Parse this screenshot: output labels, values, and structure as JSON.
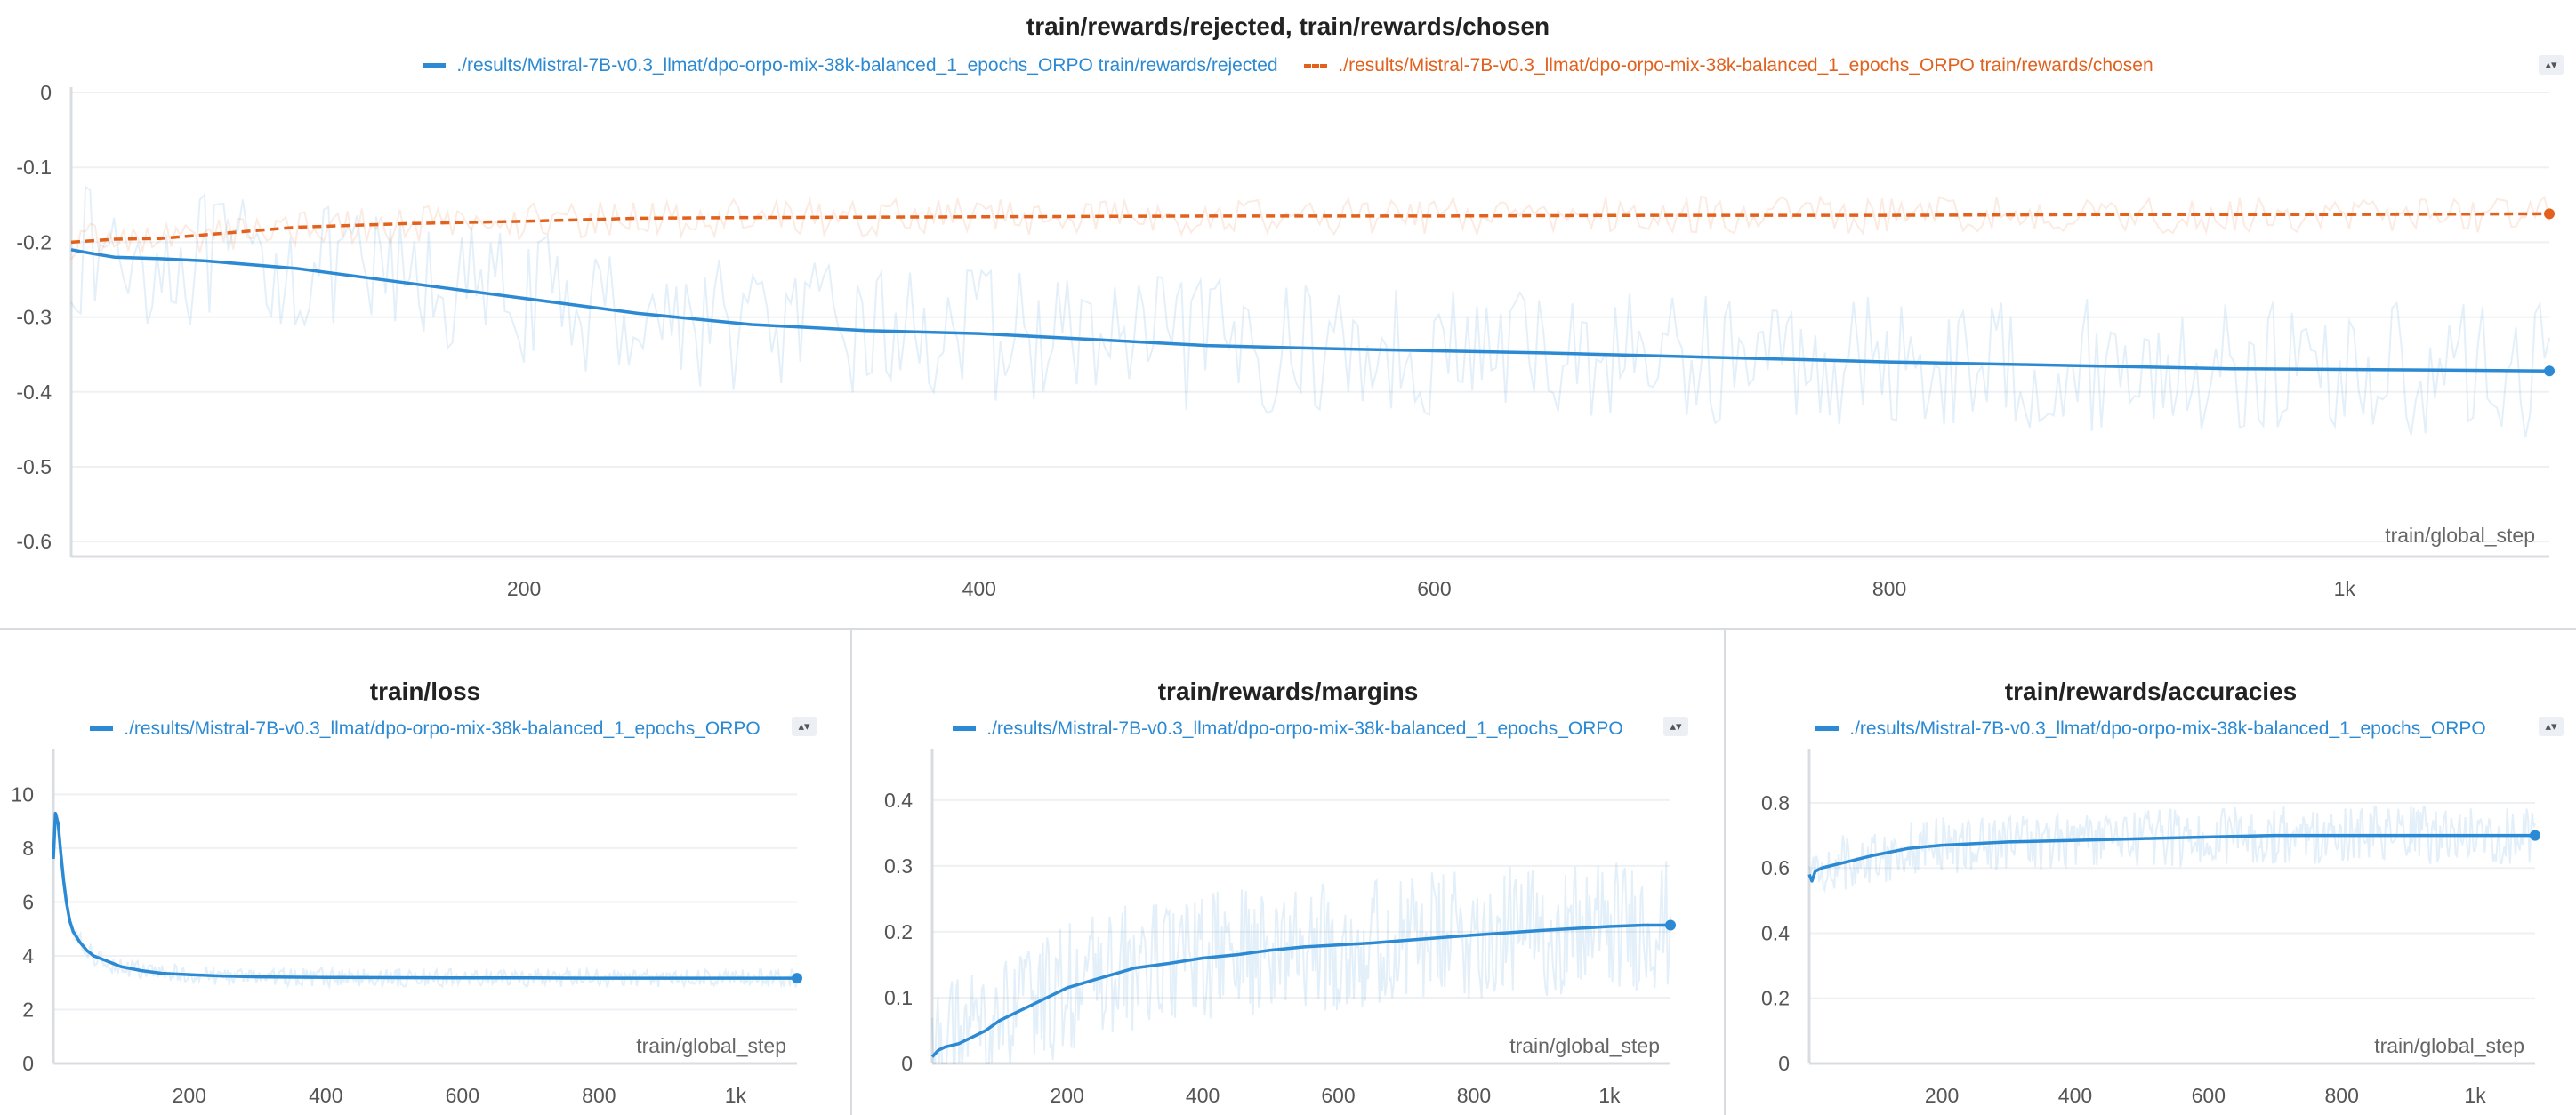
{
  "chart_data": [
    {
      "id": "top",
      "type": "line",
      "title": "train/rewards/rejected, train/rewards/chosen",
      "xlabel": "train/global_step",
      "ylabel": "",
      "xlim": [
        1,
        1090
      ],
      "ylim": [
        -0.62,
        0
      ],
      "x_ticks": [
        {
          "v": 200,
          "label": "200"
        },
        {
          "v": 400,
          "label": "400"
        },
        {
          "v": 600,
          "label": "600"
        },
        {
          "v": 800,
          "label": "800"
        },
        {
          "v": 1000,
          "label": "1k"
        }
      ],
      "y_ticks": [
        {
          "v": 0,
          "label": "0"
        },
        {
          "v": -0.1,
          "label": "-0.1"
        },
        {
          "v": -0.2,
          "label": "-0.2"
        },
        {
          "v": -0.3,
          "label": "-0.3"
        },
        {
          "v": -0.4,
          "label": "-0.4"
        },
        {
          "v": -0.5,
          "label": "-0.5"
        },
        {
          "v": -0.6,
          "label": "-0.6"
        }
      ],
      "grid": true,
      "legend_position": "top-center",
      "series": [
        {
          "name": "./results/Mistral-7B-v0.3_llmat/dpo-orpo-mix-38k-balanced_1_epochs_ORPO train/rewards/rejected",
          "color": "#2b8ad3",
          "dashed": false,
          "raw_spread": 0.09,
          "x": [
            1,
            10,
            20,
            40,
            60,
            100,
            150,
            200,
            250,
            300,
            350,
            400,
            450,
            500,
            550,
            600,
            650,
            700,
            750,
            800,
            850,
            900,
            950,
            1000,
            1050,
            1090
          ],
          "y": [
            -0.21,
            -0.215,
            -0.22,
            -0.222,
            -0.225,
            -0.235,
            -0.255,
            -0.275,
            -0.295,
            -0.31,
            -0.318,
            -0.322,
            -0.33,
            -0.338,
            -0.342,
            -0.345,
            -0.348,
            -0.352,
            -0.356,
            -0.36,
            -0.363,
            -0.366,
            -0.369,
            -0.37,
            -0.371,
            -0.372
          ]
        },
        {
          "name": "./results/Mistral-7B-v0.3_llmat/dpo-orpo-mix-38k-balanced_1_epochs_ORPO train/rewards/chosen",
          "color": "#e2611d",
          "dashed": true,
          "raw_spread": 0.025,
          "x": [
            1,
            10,
            20,
            40,
            60,
            100,
            150,
            200,
            250,
            300,
            400,
            500,
            600,
            700,
            800,
            900,
            1000,
            1090
          ],
          "y": [
            -0.2,
            -0.198,
            -0.196,
            -0.195,
            -0.19,
            -0.18,
            -0.175,
            -0.172,
            -0.168,
            -0.167,
            -0.166,
            -0.165,
            -0.165,
            -0.164,
            -0.164,
            -0.163,
            -0.163,
            -0.162
          ]
        }
      ]
    },
    {
      "id": "loss",
      "type": "line",
      "title": "train/loss",
      "xlabel": "train/global_step",
      "ylabel": "",
      "xlim": [
        1,
        1090
      ],
      "ylim": [
        0,
        11.5
      ],
      "x_ticks": [
        {
          "v": 200,
          "label": "200"
        },
        {
          "v": 400,
          "label": "400"
        },
        {
          "v": 600,
          "label": "600"
        },
        {
          "v": 800,
          "label": "800"
        },
        {
          "v": 1000,
          "label": "1k"
        }
      ],
      "y_ticks": [
        {
          "v": 0,
          "label": "0"
        },
        {
          "v": 2,
          "label": "2"
        },
        {
          "v": 4,
          "label": "4"
        },
        {
          "v": 6,
          "label": "6"
        },
        {
          "v": 8,
          "label": "8"
        },
        {
          "v": 10,
          "label": "10"
        }
      ],
      "grid": true,
      "legend_position": "top-center",
      "series": [
        {
          "name": "./results/Mistral-7B-v0.3_llmat/dpo-orpo-mix-38k-balanced_1_epochs_ORPO",
          "color": "#2b8ad3",
          "dashed": false,
          "raw_spread": 0.35,
          "x": [
            1,
            4,
            8,
            12,
            16,
            20,
            25,
            30,
            40,
            50,
            60,
            80,
            100,
            130,
            160,
            200,
            250,
            300,
            400,
            500,
            600,
            700,
            800,
            900,
            1000,
            1090
          ],
          "y": [
            7.6,
            9.3,
            8.9,
            7.8,
            6.8,
            6.0,
            5.3,
            4.9,
            4.5,
            4.2,
            4.0,
            3.8,
            3.6,
            3.45,
            3.35,
            3.3,
            3.25,
            3.22,
            3.2,
            3.19,
            3.18,
            3.18,
            3.17,
            3.17,
            3.17,
            3.17
          ]
        }
      ]
    },
    {
      "id": "margins",
      "type": "line",
      "title": "train/rewards/margins",
      "xlabel": "train/global_step",
      "ylabel": "",
      "xlim": [
        1,
        1090
      ],
      "ylim": [
        0,
        0.47
      ],
      "x_ticks": [
        {
          "v": 200,
          "label": "200"
        },
        {
          "v": 400,
          "label": "400"
        },
        {
          "v": 600,
          "label": "600"
        },
        {
          "v": 800,
          "label": "800"
        },
        {
          "v": 1000,
          "label": "1k"
        }
      ],
      "y_ticks": [
        {
          "v": 0,
          "label": "0"
        },
        {
          "v": 0.1,
          "label": "0.1"
        },
        {
          "v": 0.2,
          "label": "0.2"
        },
        {
          "v": 0.3,
          "label": "0.3"
        },
        {
          "v": 0.4,
          "label": "0.4"
        }
      ],
      "grid": true,
      "legend_position": "top-center",
      "series": [
        {
          "name": "./results/Mistral-7B-v0.3_llmat/dpo-orpo-mix-38k-balanced_1_epochs_ORPO",
          "color": "#2b8ad3",
          "dashed": false,
          "raw_spread": 0.1,
          "x": [
            1,
            10,
            20,
            40,
            60,
            80,
            100,
            150,
            200,
            250,
            300,
            350,
            400,
            450,
            500,
            550,
            600,
            650,
            700,
            800,
            900,
            1000,
            1050,
            1090
          ],
          "y": [
            0.01,
            0.02,
            0.025,
            0.03,
            0.04,
            0.05,
            0.065,
            0.09,
            0.115,
            0.13,
            0.145,
            0.152,
            0.16,
            0.165,
            0.172,
            0.177,
            0.18,
            0.183,
            0.187,
            0.195,
            0.202,
            0.208,
            0.21,
            0.21
          ]
        }
      ]
    },
    {
      "id": "accuracies",
      "type": "line",
      "title": "train/rewards/accuracies",
      "xlabel": "train/global_step",
      "ylabel": "",
      "xlim": [
        1,
        1090
      ],
      "ylim": [
        0,
        0.95
      ],
      "x_ticks": [
        {
          "v": 200,
          "label": "200"
        },
        {
          "v": 400,
          "label": "400"
        },
        {
          "v": 600,
          "label": "600"
        },
        {
          "v": 800,
          "label": "800"
        },
        {
          "v": 1000,
          "label": "1k"
        }
      ],
      "y_ticks": [
        {
          "v": 0,
          "label": "0"
        },
        {
          "v": 0.2,
          "label": "0.2"
        },
        {
          "v": 0.4,
          "label": "0.4"
        },
        {
          "v": 0.6,
          "label": "0.6"
        },
        {
          "v": 0.8,
          "label": "0.8"
        }
      ],
      "grid": true,
      "legend_position": "top-center",
      "series": [
        {
          "name": "./results/Mistral-7B-v0.3_llmat/dpo-orpo-mix-38k-balanced_1_epochs_ORPO",
          "color": "#2b8ad3",
          "dashed": false,
          "raw_spread": 0.09,
          "x": [
            1,
            5,
            10,
            20,
            40,
            60,
            80,
            100,
            150,
            200,
            250,
            300,
            400,
            500,
            600,
            700,
            800,
            900,
            1000,
            1090
          ],
          "y": [
            0.58,
            0.56,
            0.59,
            0.6,
            0.61,
            0.62,
            0.63,
            0.64,
            0.66,
            0.67,
            0.675,
            0.68,
            0.685,
            0.69,
            0.695,
            0.7,
            0.7,
            0.7,
            0.7,
            0.7
          ]
        }
      ]
    }
  ]
}
